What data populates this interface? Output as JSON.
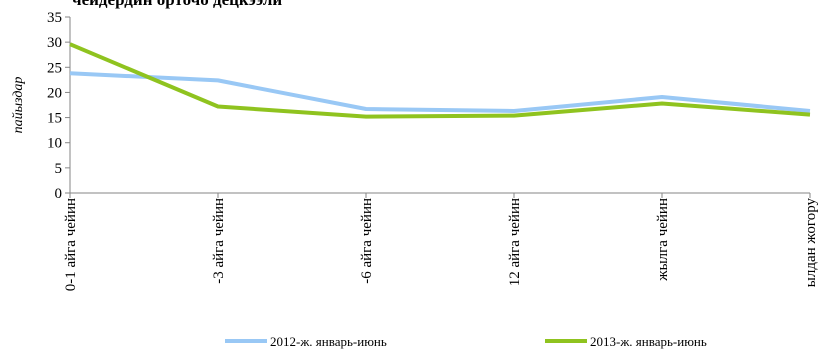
{
  "chart_data": {
    "type": "line",
    "title": "чеидердин орточо децкээли",
    "xlabel": "",
    "ylabel": "пайыздар",
    "categories": [
      "0-1 айга чейин",
      "-3 айга чейин",
      "-6 айга чейин",
      "12 айга чейин",
      "жылга чейин",
      "ылдан жогору"
    ],
    "ylim": [
      0,
      35
    ],
    "yticks": [
      0,
      5,
      10,
      15,
      20,
      25,
      30,
      35
    ],
    "grid": false,
    "legend_position": "bottom",
    "series": [
      {
        "name": "2012-ж. январь-июнь",
        "color": "#99c8f5",
        "values": [
          23.8,
          22.4,
          16.7,
          16.3,
          19.1,
          16.3
        ]
      },
      {
        "name": "2013-ж. январь-июнь",
        "color": "#8fc31f",
        "values": [
          29.6,
          17.2,
          15.2,
          15.4,
          17.8,
          15.6
        ]
      }
    ]
  }
}
